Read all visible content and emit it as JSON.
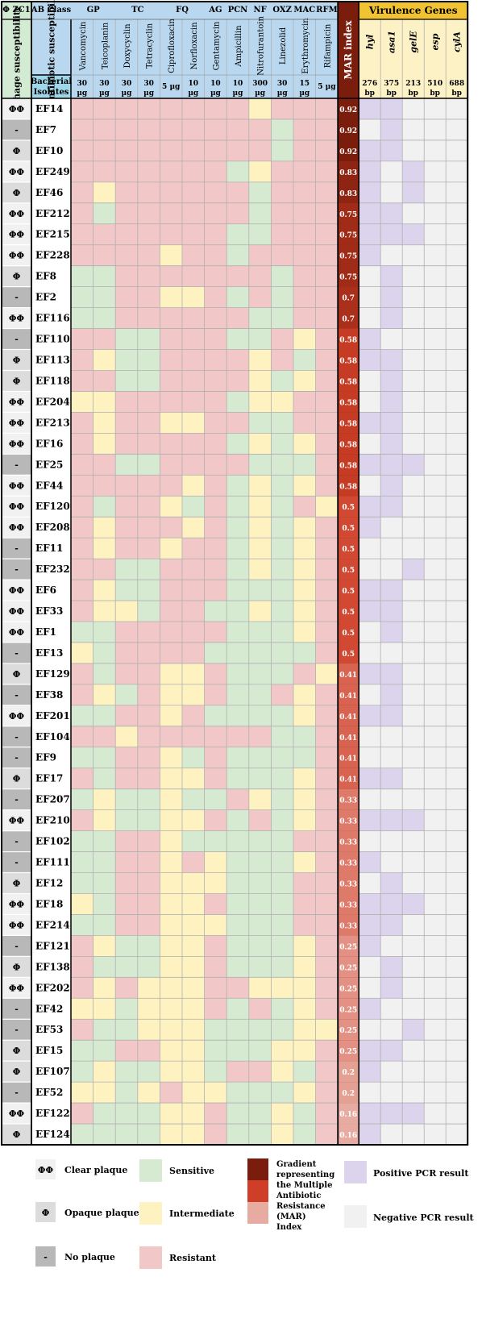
{
  "chart_data": {
    "type": "heatmap",
    "phage_header": "Φ ZC1",
    "phage_subheader": "Phage susceptibility",
    "ab_class_header": "AB Class",
    "antibiotic_susceptibility_label": "Antibiotic susceptibility",
    "bacterial_isolates_label": "Bacterial Isolates",
    "mar_header": "MAR index",
    "virulence_header": "Virulence Genes",
    "antibiotic_classes": [
      {
        "name": "GP",
        "span": 2
      },
      {
        "name": "TC",
        "span": 2
      },
      {
        "name": "FQ",
        "span": 2
      },
      {
        "name": "AG",
        "span": 1
      },
      {
        "name": "PCN",
        "span": 1
      },
      {
        "name": "NF",
        "span": 1
      },
      {
        "name": "OXZ",
        "span": 1
      },
      {
        "name": "MAC",
        "span": 1
      },
      {
        "name": "RFM",
        "span": 1
      }
    ],
    "antibiotics": [
      {
        "name": "Vancomycin",
        "dose": "30 µg"
      },
      {
        "name": "Teicoplanin",
        "dose": "30 µg"
      },
      {
        "name": "Doxycyclin",
        "dose": "30 µg"
      },
      {
        "name": "Tetracyclin",
        "dose": "30 µg"
      },
      {
        "name": "Ciprofloxacin",
        "dose": "5 µg"
      },
      {
        "name": "Norfloxacin",
        "dose": "10 µg"
      },
      {
        "name": "Gentamycin",
        "dose": "10 µg"
      },
      {
        "name": "Ampicillin",
        "dose": "10 µg"
      },
      {
        "name": "Nitrofurantoin",
        "dose": "300 µg"
      },
      {
        "name": "Linezolid",
        "dose": "30 µg"
      },
      {
        "name": "Erythromycin",
        "dose": "15 µg"
      },
      {
        "name": "Rifampicin",
        "dose": "5 µg"
      }
    ],
    "genes": [
      {
        "name": "hyl",
        "size": "276 bp"
      },
      {
        "name": "asa1",
        "size": "375 bp"
      },
      {
        "name": "gelE",
        "size": "213 bp"
      },
      {
        "name": "esp",
        "size": "510 bp"
      },
      {
        "name": "cylA",
        "size": "688 bp"
      }
    ],
    "isolates": [
      {
        "id": "EF14",
        "phage": "ΦΦ",
        "ab": "RRRRRRRRIRRR",
        "mar": "0.92",
        "genes": "PPNNN"
      },
      {
        "id": "EF7",
        "phage": "-",
        "ab": "RRRRRRRRRSRR",
        "mar": "0.92",
        "genes": "NPNNN"
      },
      {
        "id": "EF10",
        "phage": "Φ",
        "ab": "RRRRRRRRRSRR",
        "mar": "0.92",
        "genes": "PPNNN"
      },
      {
        "id": "EF249",
        "phage": "ΦΦ",
        "ab": "RRRRRRRSIRRR",
        "mar": "0.83",
        "genes": "PNPNN"
      },
      {
        "id": "EF46",
        "phage": "Φ",
        "ab": "RIRRRRRRSRRR",
        "mar": "0.83",
        "genes": "PNPNN"
      },
      {
        "id": "EF212",
        "phage": "ΦΦ",
        "ab": "RSRRRRRRSRRR",
        "mar": "0.75",
        "genes": "PPNNN"
      },
      {
        "id": "EF215",
        "phage": "ΦΦ",
        "ab": "RRRRRRRSSRRR",
        "mar": "0.75",
        "genes": "PPPNN"
      },
      {
        "id": "EF228",
        "phage": "ΦΦ",
        "ab": "RRRRIRRSRRRR",
        "mar": "0.75",
        "genes": "PNNNN"
      },
      {
        "id": "EF8",
        "phage": "Φ",
        "ab": "SSRRRRRRRSRR",
        "mar": "0.75",
        "genes": "NPNNN"
      },
      {
        "id": "EF2",
        "phage": "-",
        "ab": "SSRRIIRSRSRR",
        "mar": "0.7",
        "genes": "NPNNN"
      },
      {
        "id": "EF116",
        "phage": "ΦΦ",
        "ab": "SSRRRRRRSSRR",
        "mar": "0.7",
        "genes": "NPNNN"
      },
      {
        "id": "EF110",
        "phage": "-",
        "ab": "RRSSRRRSSRIR",
        "mar": "0.58",
        "genes": "PNNNN"
      },
      {
        "id": "EF113",
        "phage": "Φ",
        "ab": "RISSRRRRIRSR",
        "mar": "0.58",
        "genes": "PPNNN"
      },
      {
        "id": "EF118",
        "phage": "Φ",
        "ab": "RRSSRRRRISIR",
        "mar": "0.58",
        "genes": "NPNNN"
      },
      {
        "id": "EF204",
        "phage": "ΦΦ",
        "ab": "IIRRRRRSIIRR",
        "mar": "0.58",
        "genes": "NPNNN"
      },
      {
        "id": "EF213",
        "phage": "ΦΦ",
        "ab": "RIRRIIRRSSRR",
        "mar": "0.58",
        "genes": "PPNNN"
      },
      {
        "id": "EF16",
        "phage": "ΦΦ",
        "ab": "RIRRRRRSISIR",
        "mar": "0.58",
        "genes": "NPNNN"
      },
      {
        "id": "EF25",
        "phage": "-",
        "ab": "RRSSRRRRSSSR",
        "mar": "0.58",
        "genes": "PPPNN"
      },
      {
        "id": "EF44",
        "phage": "ΦΦ",
        "ab": "RRRRRIRSISIR",
        "mar": "0.58",
        "genes": "NPNNN"
      },
      {
        "id": "EF120",
        "phage": "ΦΦ",
        "ab": "RSRRISRSISRI",
        "mar": "0.5",
        "genes": "PPNNN"
      },
      {
        "id": "EF208",
        "phage": "ΦΦ",
        "ab": "RIRRRIRSISIR",
        "mar": "0.5",
        "genes": "PNNNN"
      },
      {
        "id": "EF11",
        "phage": "-",
        "ab": "RIRRIRRSISIR",
        "mar": "0.5",
        "genes": "NNNNN"
      },
      {
        "id": "EF232",
        "phage": "-",
        "ab": "RRSSRRRSISIR",
        "mar": "0.5",
        "genes": "NNPNN"
      },
      {
        "id": "EF6",
        "phage": "ΦΦ",
        "ab": "RISSRRRSSSIR",
        "mar": "0.5",
        "genes": "PPNNN"
      },
      {
        "id": "EF33",
        "phage": "ΦΦ",
        "ab": "RIISRRSSISIR",
        "mar": "0.5",
        "genes": "PPNNN"
      },
      {
        "id": "EF1",
        "phage": "ΦΦ",
        "ab": "SSRRRRRSSSIR",
        "mar": "0.5",
        "genes": "NPNNN"
      },
      {
        "id": "EF13",
        "phage": "-",
        "ab": "ISRRRRSSSSSR",
        "mar": "0.5",
        "genes": "NNNNN"
      },
      {
        "id": "EF129",
        "phage": "Φ",
        "ab": "RSRRIIRSSSRI",
        "mar": "0.41",
        "genes": "PPNNN"
      },
      {
        "id": "EF38",
        "phage": "-",
        "ab": "RISRIIRSSRIR",
        "mar": "0.41",
        "genes": "NPNNN"
      },
      {
        "id": "EF201",
        "phage": "ΦΦ",
        "ab": "SSRRIRSSSSIR",
        "mar": "0.41",
        "genes": "PPNNN"
      },
      {
        "id": "EF104",
        "phage": "-",
        "ab": "RRIRRRRRRSSR",
        "mar": "0.41",
        "genes": "NNNNN"
      },
      {
        "id": "EF9",
        "phage": "-",
        "ab": "SSRRISRSSSSR",
        "mar": "0.41",
        "genes": "NNNNN"
      },
      {
        "id": "EF17",
        "phage": "Φ",
        "ab": "RSRRIIRSSSIR",
        "mar": "0.41",
        "genes": "PPNNN"
      },
      {
        "id": "EF207",
        "phage": "-",
        "ab": "SISSISSRISIR",
        "mar": "0.33",
        "genes": "NNNNN"
      },
      {
        "id": "EF210",
        "phage": "ΦΦ",
        "ab": "RISSIIRSRSIR",
        "mar": "0.33",
        "genes": "PPPNN"
      },
      {
        "id": "EF102",
        "phage": "-",
        "ab": "SSRRISSSSSRR",
        "mar": "0.33",
        "genes": "NNNNN"
      },
      {
        "id": "EF111",
        "phage": "-",
        "ab": "SSRRIRISSSIR",
        "mar": "0.33",
        "genes": "PNNNN"
      },
      {
        "id": "EF12",
        "phage": "Φ",
        "ab": "SSRRIIISSSRR",
        "mar": "0.33",
        "genes": "NPNNN"
      },
      {
        "id": "EF18",
        "phage": "ΦΦ",
        "ab": "ISRRIIRSSSRR",
        "mar": "0.33",
        "genes": "PPPNN"
      },
      {
        "id": "EF214",
        "phage": "ΦΦ",
        "ab": "SSRRIIISSSRR",
        "mar": "0.33",
        "genes": "PPNNN"
      },
      {
        "id": "EF121",
        "phage": "-",
        "ab": "RISSIIRSSSIR",
        "mar": "0.25",
        "genes": "PNNNN"
      },
      {
        "id": "EF138",
        "phage": "Φ",
        "ab": "RSSSIIRSSSIR",
        "mar": "0.25",
        "genes": "NPNNN"
      },
      {
        "id": "EF202",
        "phage": "ΦΦ",
        "ab": "RIRIIIRRIIIR",
        "mar": "0.25",
        "genes": "NPNNN"
      },
      {
        "id": "EF42",
        "phage": "-",
        "ab": "IISIIIRSRSIR",
        "mar": "0.25",
        "genes": "PNNNN"
      },
      {
        "id": "EF53",
        "phage": "-",
        "ab": "RSSIIISSSSII",
        "mar": "0.25",
        "genes": "NNPNN"
      },
      {
        "id": "EF15",
        "phage": "Φ",
        "ab": "SSRRIISSSIIR",
        "mar": "0.25",
        "genes": "PPNNN"
      },
      {
        "id": "EF107",
        "phage": "Φ",
        "ab": "SISSIISRRISR",
        "mar": "0.2",
        "genes": "PNNNN"
      },
      {
        "id": "EF52",
        "phage": "-",
        "ab": "IISIRIISSSIR",
        "mar": "0.2",
        "genes": "NNNNN"
      },
      {
        "id": "EF122",
        "phage": "ΦΦ",
        "ab": "RSSSIIRSSISR",
        "mar": "0.16",
        "genes": "PPPNN"
      },
      {
        "id": "EF124",
        "phage": "Φ",
        "ab": "SSSSIIRSSISR",
        "mar": "0.16",
        "genes": "PNNNN"
      }
    ],
    "legend": {
      "phage": [
        {
          "symbol": "ΦΦ",
          "label": "Clear plaque"
        },
        {
          "symbol": "Φ",
          "label": "Opaque plaque"
        },
        {
          "symbol": "-",
          "label": "No plaque"
        }
      ],
      "susceptibility": [
        {
          "code": "S",
          "label": "Sensitive"
        },
        {
          "code": "I",
          "label": "Intermediate"
        },
        {
          "code": "R",
          "label": "Resistant"
        }
      ],
      "mar": "Gradient representing the Multiple Antibiotic Resistance (MAR) Index",
      "pcr": [
        {
          "code": "P",
          "label": "Positive PCR result"
        },
        {
          "code": "N",
          "label": "Negative PCR result"
        }
      ]
    },
    "colors": {
      "S": "#d6ead2",
      "I": "#fdf2c0",
      "R": "#f2c7c7",
      "P": "#dcd4ec",
      "N": "#f1f1f1",
      "phage_clear": "#f1f1f1",
      "phage_opaque": "#dcdcdc",
      "phage_none": "#b8b8b8",
      "phage_header": "#d3ead3",
      "ab_header": "#b9d8ef",
      "isolate_header": "#9fd6ea",
      "gene_title": "#f1c232",
      "gene_header": "#fdf1c6",
      "mar_dark": "#7a1d0c",
      "mar_mid": "#cf3e26",
      "mar_light": "#e8aba1"
    }
  }
}
